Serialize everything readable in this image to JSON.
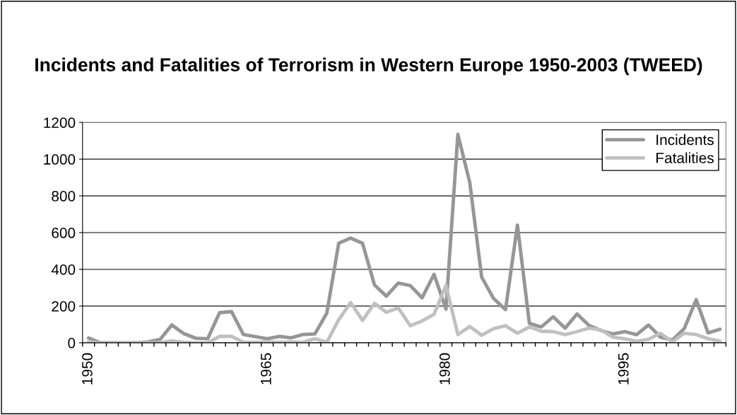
{
  "chart_data": {
    "type": "line",
    "title": "Incidents and Fatalities of Terrorism in Western Europe 1950-2003 (TWEED)",
    "categories": [
      "1950",
      null,
      null,
      null,
      null,
      null,
      null,
      null,
      null,
      null,
      null,
      null,
      null,
      null,
      null,
      "1965",
      null,
      null,
      null,
      null,
      null,
      null,
      null,
      null,
      null,
      null,
      null,
      null,
      null,
      null,
      "1980",
      null,
      null,
      null,
      null,
      null,
      null,
      null,
      null,
      null,
      null,
      null,
      null,
      null,
      null,
      "1995",
      null,
      null,
      null,
      null,
      null,
      null,
      null,
      null
    ],
    "series": [
      {
        "name": "Incidents",
        "color": "#969696",
        "values": [
          26,
          0,
          0,
          0,
          0,
          5,
          18,
          97,
          50,
          25,
          22,
          164,
          170,
          45,
          34,
          22,
          35,
          27,
          45,
          48,
          161,
          542,
          570,
          542,
          315,
          254,
          325,
          312,
          245,
          373,
          183,
          1135,
          873,
          357,
          241,
          181,
          641,
          106,
          86,
          142,
          80,
          157,
          95,
          67,
          48,
          61,
          44,
          97,
          31,
          15,
          77,
          235,
          54,
          74
        ]
      },
      {
        "name": "Fatalities",
        "color": "#c0c0c0",
        "values": [
          5,
          0,
          0,
          0,
          0,
          0,
          0,
          10,
          3,
          0,
          0,
          35,
          35,
          3,
          3,
          5,
          3,
          5,
          3,
          22,
          3,
          125,
          219,
          122,
          215,
          166,
          190,
          93,
          119,
          155,
          312,
          45,
          89,
          41,
          77,
          93,
          52,
          86,
          63,
          61,
          44,
          61,
          80,
          70,
          31,
          22,
          8,
          19,
          52,
          5,
          52,
          45,
          22,
          9
        ]
      }
    ],
    "ylim": [
      0,
      1200
    ],
    "yticks": [
      0,
      200,
      400,
      600,
      800,
      1000,
      1200
    ],
    "grid": "y",
    "legend": "top right",
    "marker": "none",
    "line_style": "solid"
  }
}
